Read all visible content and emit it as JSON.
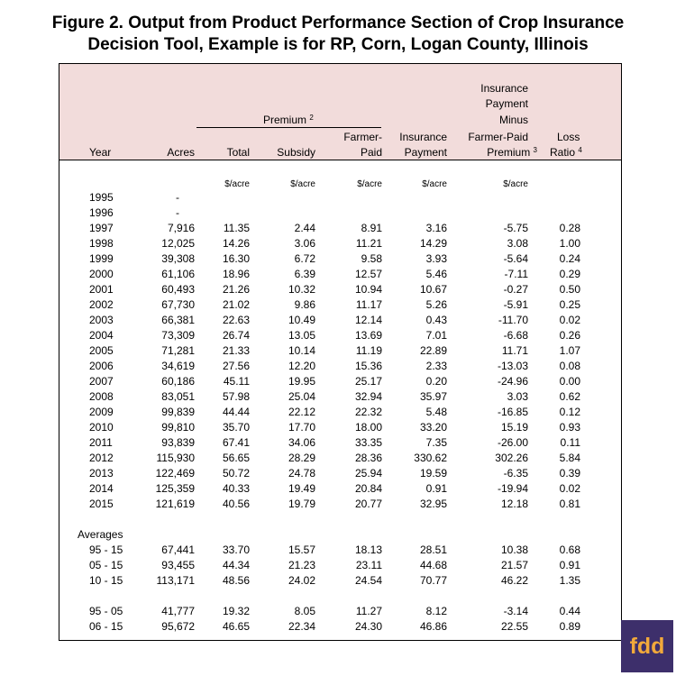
{
  "title": {
    "line1": "Figure 2. Output from Product Performance Section of Crop Insurance",
    "line2": "Decision Tool, Example is for RP, Corn, Logan County, Illinois"
  },
  "header": {
    "year": "Year",
    "acres": "Acres",
    "premium": "Premium",
    "premium_note": "2",
    "total": "Total",
    "subsidy": "Subsidy",
    "farmer_paid_1": "Farmer-",
    "farmer_paid_2": "Paid",
    "insurance_1": "Insurance",
    "insurance_2": "Payment",
    "ipm_1": "Insurance",
    "ipm_2": "Payment",
    "ipm_3": "Minus",
    "ipm_4": "Farmer-Paid",
    "ipm_5": "Premium",
    "ipm_note": "3",
    "loss_1": "Loss",
    "loss_2": "Ratio",
    "loss_note": "4"
  },
  "units": {
    "total": "$/acre",
    "subsidy": "$/acre",
    "farmer_paid": "$/acre",
    "insurance": "$/acre",
    "ipm": "$/acre"
  },
  "rows": [
    [
      "1995",
      "-",
      "",
      "",
      "",
      "",
      "",
      ""
    ],
    [
      "1996",
      "-",
      "",
      "",
      "",
      "",
      "",
      ""
    ],
    [
      "1997",
      "7,916",
      "11.35",
      "2.44",
      "8.91",
      "3.16",
      "-5.75",
      "0.28"
    ],
    [
      "1998",
      "12,025",
      "14.26",
      "3.06",
      "11.21",
      "14.29",
      "3.08",
      "1.00"
    ],
    [
      "1999",
      "39,308",
      "16.30",
      "6.72",
      "9.58",
      "3.93",
      "-5.64",
      "0.24"
    ],
    [
      "2000",
      "61,106",
      "18.96",
      "6.39",
      "12.57",
      "5.46",
      "-7.11",
      "0.29"
    ],
    [
      "2001",
      "60,493",
      "21.26",
      "10.32",
      "10.94",
      "10.67",
      "-0.27",
      "0.50"
    ],
    [
      "2002",
      "67,730",
      "21.02",
      "9.86",
      "11.17",
      "5.26",
      "-5.91",
      "0.25"
    ],
    [
      "2003",
      "66,381",
      "22.63",
      "10.49",
      "12.14",
      "0.43",
      "-11.70",
      "0.02"
    ],
    [
      "2004",
      "73,309",
      "26.74",
      "13.05",
      "13.69",
      "7.01",
      "-6.68",
      "0.26"
    ],
    [
      "2005",
      "71,281",
      "21.33",
      "10.14",
      "11.19",
      "22.89",
      "11.71",
      "1.07"
    ],
    [
      "2006",
      "34,619",
      "27.56",
      "12.20",
      "15.36",
      "2.33",
      "-13.03",
      "0.08"
    ],
    [
      "2007",
      "60,186",
      "45.11",
      "19.95",
      "25.17",
      "0.20",
      "-24.96",
      "0.00"
    ],
    [
      "2008",
      "83,051",
      "57.98",
      "25.04",
      "32.94",
      "35.97",
      "3.03",
      "0.62"
    ],
    [
      "2009",
      "99,839",
      "44.44",
      "22.12",
      "22.32",
      "5.48",
      "-16.85",
      "0.12"
    ],
    [
      "2010",
      "99,810",
      "35.70",
      "17.70",
      "18.00",
      "33.20",
      "15.19",
      "0.93"
    ],
    [
      "2011",
      "93,839",
      "67.41",
      "34.06",
      "33.35",
      "7.35",
      "-26.00",
      "0.11"
    ],
    [
      "2012",
      "115,930",
      "56.65",
      "28.29",
      "28.36",
      "330.62",
      "302.26",
      "5.84"
    ],
    [
      "2013",
      "122,469",
      "50.72",
      "24.78",
      "25.94",
      "19.59",
      "-6.35",
      "0.39"
    ],
    [
      "2014",
      "125,359",
      "40.33",
      "19.49",
      "20.84",
      "0.91",
      "-19.94",
      "0.02"
    ],
    [
      "2015",
      "121,619",
      "40.56",
      "19.79",
      "20.77",
      "32.95",
      "12.18",
      "0.81"
    ]
  ],
  "averages_label": "Averages",
  "averages": [
    [
      "95 - 15",
      "67,441",
      "33.70",
      "15.57",
      "18.13",
      "28.51",
      "10.38",
      "0.68"
    ],
    [
      "05 - 15",
      "93,455",
      "44.34",
      "21.23",
      "23.11",
      "44.68",
      "21.57",
      "0.91"
    ],
    [
      "10 - 15",
      "113,171",
      "48.56",
      "24.02",
      "24.54",
      "70.77",
      "46.22",
      "1.35"
    ]
  ],
  "averages2": [
    [
      "95 - 05",
      "41,777",
      "19.32",
      "8.05",
      "11.27",
      "8.12",
      "-3.14",
      "0.44"
    ],
    [
      "06 - 15",
      "95,672",
      "46.65",
      "22.34",
      "24.30",
      "46.86",
      "22.55",
      "0.89"
    ]
  ],
  "logo": "fdd"
}
